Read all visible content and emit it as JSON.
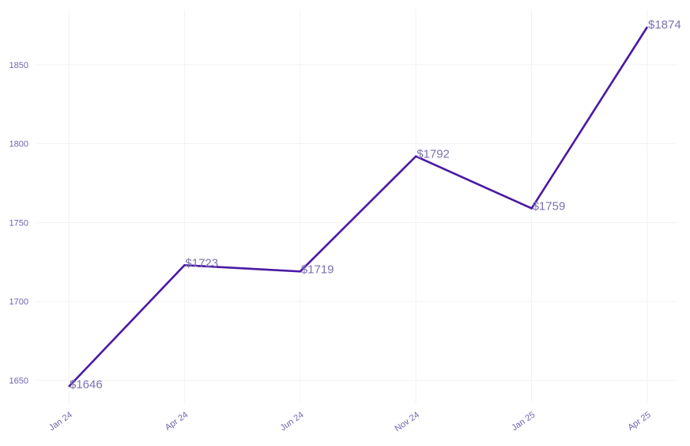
{
  "chart_data": {
    "type": "line",
    "title": "",
    "xlabel": "",
    "ylabel": "",
    "categories": [
      "Jan 24",
      "Apr 24",
      "Jun 24",
      "Nov 24",
      "Jan 25",
      "Apr 25"
    ],
    "series": [
      {
        "values": [
          1646,
          1723,
          1719,
          1792,
          1759,
          1874
        ],
        "data_labels": [
          "$1646",
          "$1723",
          "$1719",
          "$1792",
          "$1759",
          "$1874"
        ]
      }
    ],
    "yticks": [
      1650,
      1700,
      1750,
      1800,
      1850
    ],
    "ylim": [
      1637,
      1878
    ],
    "grid": true,
    "legend": "none",
    "colors": {
      "line": "#4a1aa3",
      "tick_label": "#6f64b0",
      "data_label": "#7b72b2",
      "grid": "#f2f2f2"
    }
  }
}
